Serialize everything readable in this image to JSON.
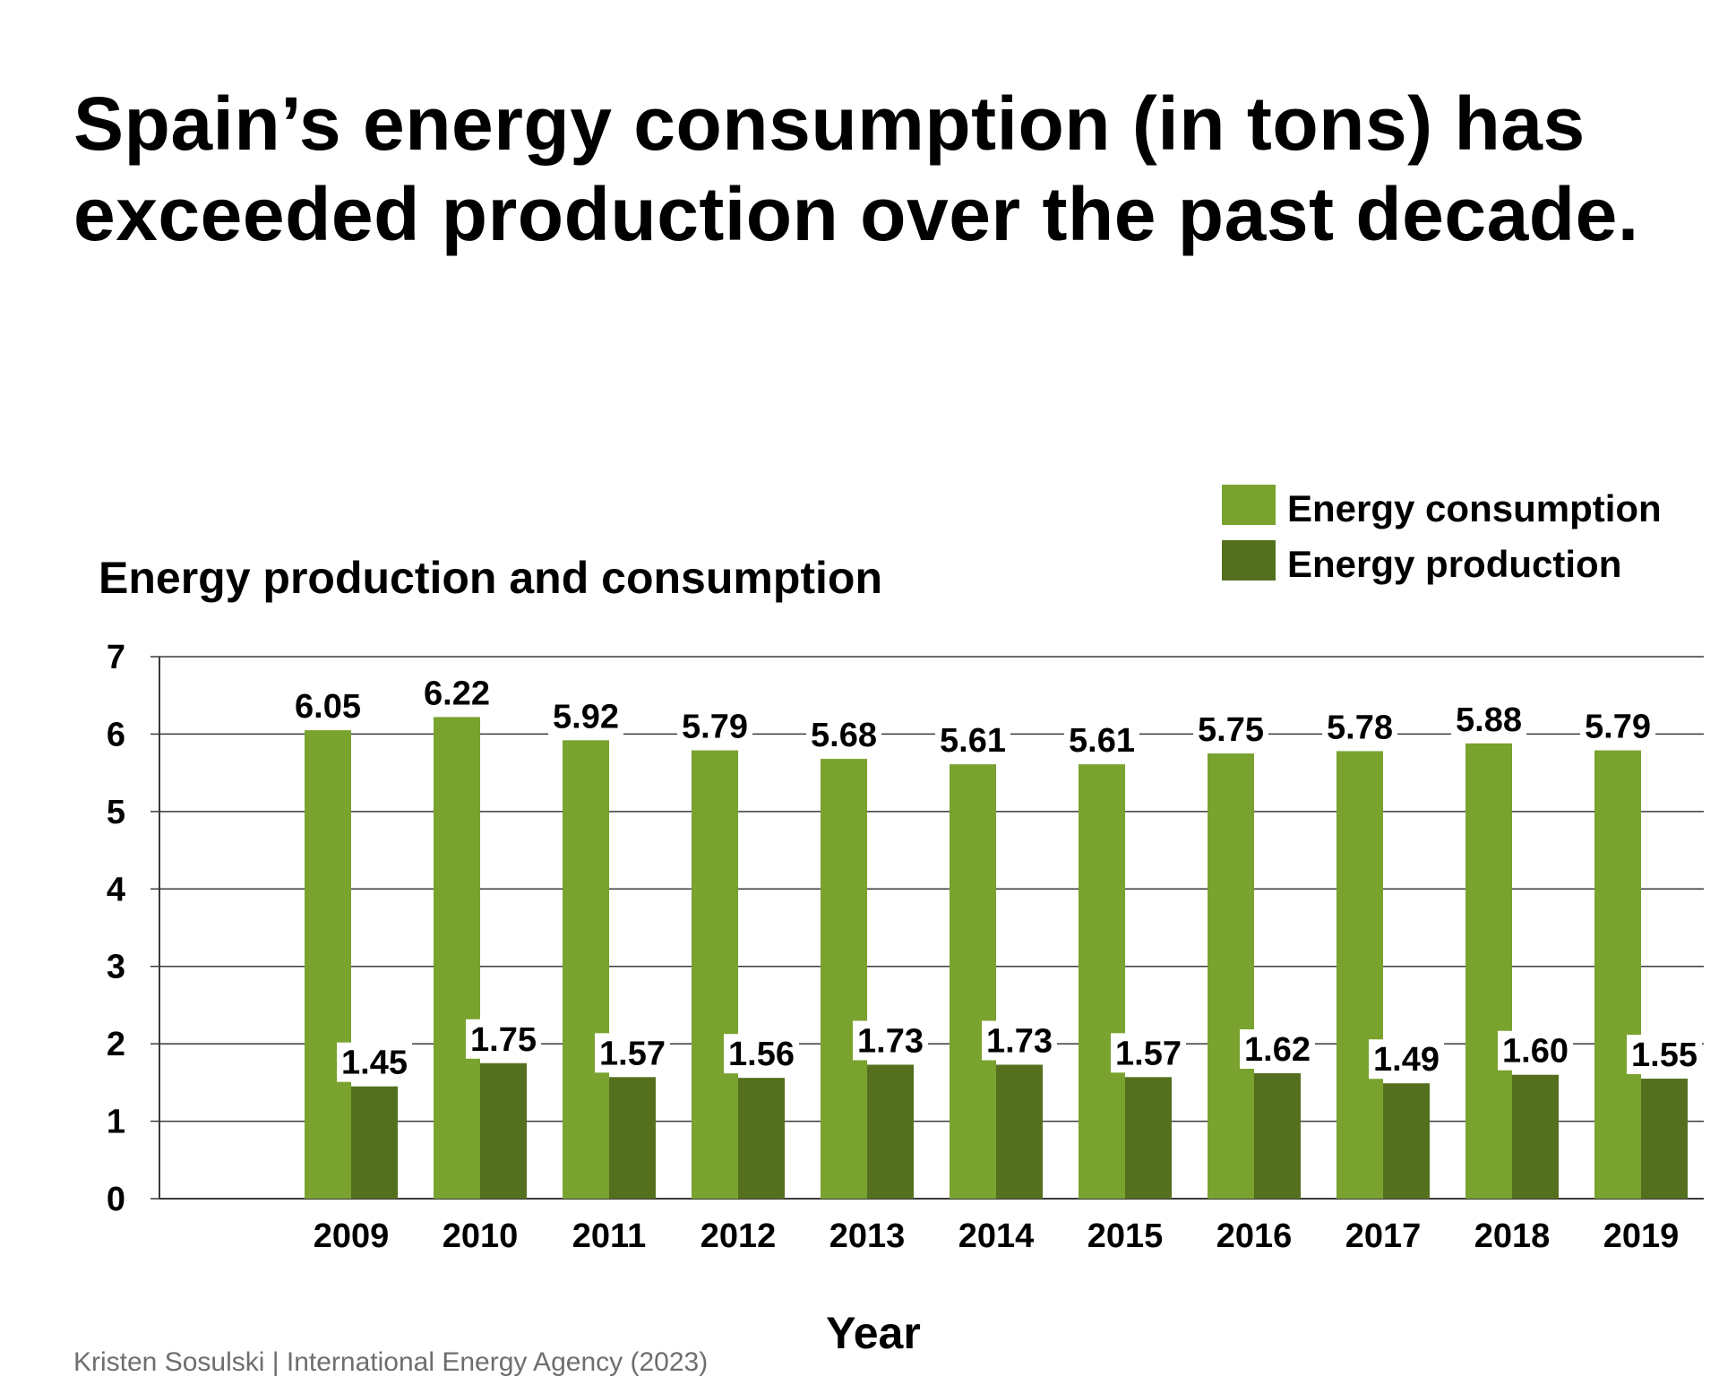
{
  "headline": {
    "line1": "Spain’s energy consumption (in tons) has",
    "line2": "exceeded production over the past decade."
  },
  "source": "Kristen Sosulski | International Energy Agency (2023)",
  "colors": {
    "consumption": "#79a22f",
    "production": "#54701f",
    "grid": "#3a3a3a",
    "text": "#000000",
    "source": "#6e6e6e"
  },
  "chart_data": {
    "type": "bar",
    "title": "Energy production and consumption",
    "xlabel": "Year",
    "ylabel": "",
    "categories": [
      "2009",
      "2010",
      "2011",
      "2012",
      "2013",
      "2014",
      "2015",
      "2016",
      "2017",
      "2018",
      "2019"
    ],
    "series": [
      {
        "name": "Energy consumption",
        "values": [
          6.05,
          6.22,
          5.92,
          5.79,
          5.68,
          5.61,
          5.61,
          5.75,
          5.78,
          5.88,
          5.79
        ],
        "labels": [
          "6.05",
          "6.22",
          "5.92",
          "5.79",
          "5.68",
          "5.61",
          "5.61",
          "5.75",
          "5.78",
          "5.88",
          "5.79"
        ]
      },
      {
        "name": "Energy production",
        "values": [
          1.45,
          1.75,
          1.57,
          1.56,
          1.73,
          1.73,
          1.57,
          1.62,
          1.49,
          1.6,
          1.55
        ],
        "labels": [
          "1.45",
          "1.75",
          "1.57",
          "1.56",
          "1.73",
          "1.73",
          "1.57",
          "1.62",
          "1.49",
          "1.60",
          "1.55"
        ]
      }
    ],
    "ylim": [
      0,
      7
    ],
    "yticks": [
      0,
      1,
      2,
      3,
      4,
      5,
      6,
      7
    ],
    "grid": true,
    "legend_position": "top-right"
  }
}
